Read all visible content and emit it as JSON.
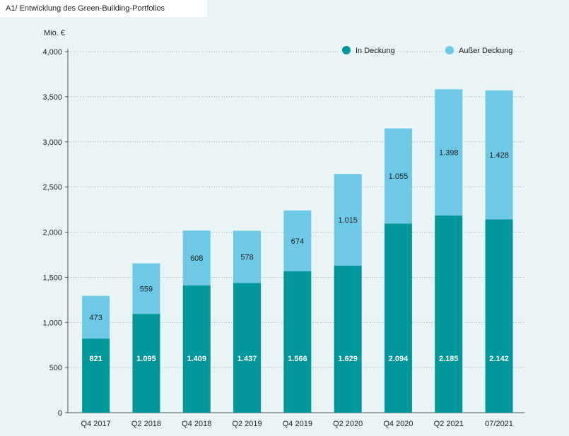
{
  "title": "A1/ Entwicklung des Green-Building-Portfolios",
  "colors": {
    "background": "#e8f4f6",
    "in_deckung": "#00979a",
    "ausser_deckung": "#6ec9e6",
    "grid": "#9aa7ab"
  },
  "chart_data": {
    "type": "bar",
    "stacked": true,
    "title": "A1/ Entwicklung des Green-Building-Portfolios",
    "ylabel": "Mio. €",
    "xlabel": "",
    "ylim": [
      0,
      4000
    ],
    "yticks": [
      0,
      500,
      1000,
      1500,
      2000,
      2500,
      3000,
      3500,
      4000
    ],
    "ytick_labels": [
      "0",
      "500",
      "1,000",
      "1,500",
      "2,000",
      "2,500",
      "3,000",
      "3,500",
      "4,000"
    ],
    "grid": true,
    "legend_position": "top-right",
    "categories": [
      "Q4 2017",
      "Q2 2018",
      "Q4 2018",
      "Q2 2019",
      "Q4 2019",
      "Q2 2020",
      "Q4 2020",
      "Q2 2021",
      "07/2021"
    ],
    "series": [
      {
        "name": "In Deckung",
        "color": "#00979a",
        "values": [
          821,
          1095,
          1409,
          1437,
          1566,
          1629,
          2094,
          2185,
          2142
        ],
        "labels": [
          "821",
          "1.095",
          "1.409",
          "1.437",
          "1.566",
          "1.629",
          "2.094",
          "2.185",
          "2.142"
        ]
      },
      {
        "name": "Außer Deckung",
        "color": "#6ec9e6",
        "values": [
          473,
          559,
          608,
          578,
          674,
          1015,
          1055,
          1398,
          1428
        ],
        "labels": [
          "473",
          "559",
          "608",
          "578",
          "674",
          "1.015",
          "1.055",
          "1.398",
          "1.428"
        ]
      }
    ]
  }
}
